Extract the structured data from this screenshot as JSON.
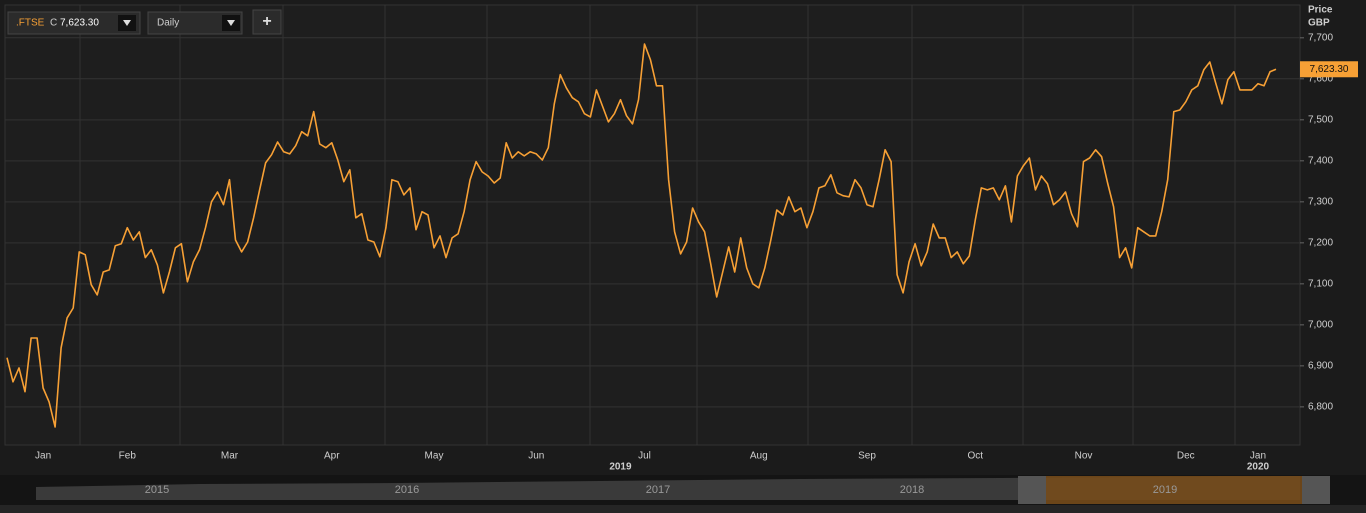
{
  "chart_data": {
    "type": "line",
    "toolbar": {
      "symbol": ".FTSE",
      "close_prefix": "C",
      "close": "7,623.30",
      "interval": "Daily",
      "add": "+"
    },
    "y_axis_label": [
      "Price",
      "GBP"
    ],
    "last_label": "7,623.30",
    "year_labels": [
      "2019",
      "2020"
    ],
    "navigator_labels": [
      "2015",
      "2016",
      "2017",
      "2018",
      "2019"
    ],
    "categories": [
      null,
      null,
      null,
      null,
      null,
      null,
      "Jan",
      null,
      null,
      null,
      null,
      null,
      null,
      null,
      null,
      null,
      null,
      null,
      null,
      null,
      "Feb",
      null,
      null,
      null,
      null,
      null,
      null,
      null,
      null,
      null,
      null,
      null,
      null,
      null,
      null,
      null,
      null,
      "Mar",
      null,
      null,
      null,
      null,
      null,
      null,
      null,
      null,
      null,
      null,
      null,
      null,
      null,
      null,
      null,
      null,
      "Apr",
      null,
      null,
      null,
      null,
      null,
      null,
      null,
      null,
      null,
      null,
      null,
      null,
      null,
      null,
      null,
      null,
      "May",
      null,
      null,
      null,
      null,
      null,
      null,
      null,
      null,
      null,
      null,
      null,
      null,
      null,
      null,
      null,
      null,
      "Jun",
      null,
      null,
      null,
      null,
      null,
      null,
      null,
      null,
      null,
      null,
      null,
      null,
      null,
      null,
      null,
      null,
      null,
      "Jul",
      null,
      null,
      null,
      null,
      null,
      null,
      null,
      null,
      null,
      null,
      null,
      null,
      null,
      null,
      null,
      null,
      null,
      null,
      "Aug",
      null,
      null,
      null,
      null,
      null,
      null,
      null,
      null,
      null,
      null,
      null,
      null,
      null,
      null,
      null,
      null,
      null,
      "Sep",
      null,
      null,
      null,
      null,
      null,
      null,
      null,
      null,
      null,
      null,
      null,
      null,
      null,
      null,
      null,
      null,
      null,
      "Oct",
      null,
      null,
      null,
      null,
      null,
      null,
      null,
      null,
      null,
      null,
      null,
      null,
      null,
      null,
      null,
      null,
      null,
      "Nov",
      null,
      null,
      null,
      null,
      null,
      null,
      null,
      null,
      null,
      null,
      null,
      null,
      null,
      null,
      null,
      null,
      "Dec",
      null,
      null,
      null,
      null,
      null,
      null,
      null,
      null,
      null,
      null,
      null,
      "Jan",
      null,
      null,
      null
    ],
    "series": [
      {
        "name": ".FTSE",
        "color": "#f7a035",
        "values": [
          6920,
          6861,
          6895,
          6837,
          6968,
          6968,
          6846,
          6812,
          6751,
          6944,
          7017,
          7041,
          7178,
          7171,
          7098,
          7073,
          7129,
          7134,
          7193,
          7198,
          7237,
          7207,
          7227,
          7164,
          7183,
          7146,
          7078,
          7129,
          7188,
          7198,
          7105,
          7154,
          7183,
          7237,
          7300,
          7324,
          7293,
          7354,
          7207,
          7178,
          7202,
          7261,
          7329,
          7395,
          7415,
          7446,
          7422,
          7417,
          7437,
          7471,
          7461,
          7520,
          7441,
          7432,
          7444,
          7402,
          7349,
          7378,
          7261,
          7271,
          7207,
          7202,
          7166,
          7237,
          7354,
          7349,
          7317,
          7334,
          7232,
          7276,
          7268,
          7188,
          7217,
          7164,
          7212,
          7222,
          7276,
          7354,
          7398,
          7373,
          7363,
          7346,
          7358,
          7444,
          7407,
          7422,
          7412,
          7422,
          7417,
          7402,
          7432,
          7539,
          7610,
          7578,
          7554,
          7544,
          7515,
          7507,
          7573,
          7534,
          7495,
          7515,
          7549,
          7510,
          7490,
          7549,
          7685,
          7646,
          7583,
          7583,
          7354,
          7227,
          7173,
          7202,
          7285,
          7251,
          7227,
          7149,
          7068,
          7129,
          7190,
          7129,
          7212,
          7139,
          7100,
          7090,
          7139,
          7207,
          7280,
          7268,
          7312,
          7276,
          7285,
          7237,
          7276,
          7334,
          7339,
          7366,
          7322,
          7315,
          7312,
          7354,
          7334,
          7293,
          7288,
          7354,
          7427,
          7398,
          7122,
          7078,
          7154,
          7198,
          7144,
          7178,
          7246,
          7212,
          7212,
          7164,
          7178,
          7149,
          7168,
          7256,
          7334,
          7329,
          7334,
          7305,
          7339,
          7251,
          7363,
          7388,
          7407,
          7329,
          7363,
          7344,
          7293,
          7305,
          7324,
          7271,
          7239,
          7398,
          7407,
          7427,
          7410,
          7346,
          7288,
          7164,
          7188,
          7139,
          7237,
          7227,
          7217,
          7217,
          7276,
          7354,
          7520,
          7524,
          7544,
          7573,
          7583,
          7622,
          7641,
          7588,
          7539,
          7598,
          7617,
          7573,
          7573,
          7573,
          7588,
          7583,
          7617,
          7623.3
        ]
      }
    ],
    "ylim": [
      6707,
      7780
    ],
    "yticks": [
      {
        "value": 6800,
        "label": "6,800"
      },
      {
        "value": 6900,
        "label": "6,900"
      },
      {
        "value": 7000,
        "label": "7,000"
      },
      {
        "value": 7100,
        "label": "7,100"
      },
      {
        "value": 7200,
        "label": "7,200"
      },
      {
        "value": 7300,
        "label": "7,300"
      },
      {
        "value": 7400,
        "label": "7,400"
      },
      {
        "value": 7500,
        "label": "7,500"
      },
      {
        "value": 7600,
        "label": "7,600"
      },
      {
        "value": 7700,
        "label": "7,700"
      }
    ],
    "grid": true
  }
}
